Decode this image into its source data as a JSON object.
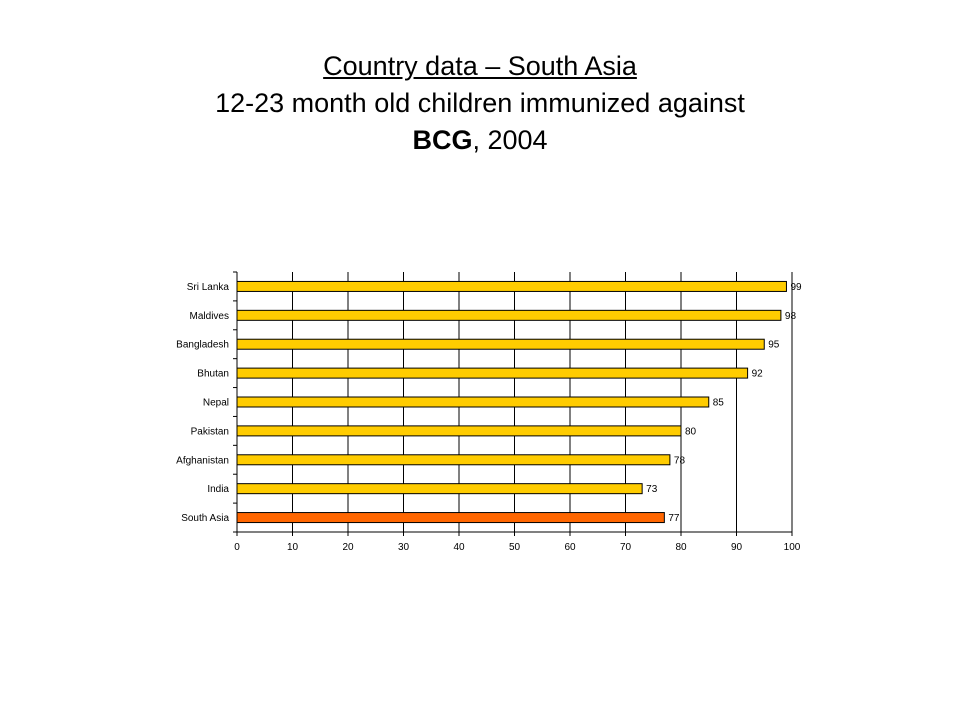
{
  "title": {
    "line1": "Country data – South Asia",
    "line2": "12-23 month old children immunized against",
    "line3_bold": "BCG",
    "line3_rest": ", 2004"
  },
  "chart_data": {
    "type": "bar",
    "orientation": "horizontal",
    "categories": [
      "Sri Lanka",
      "Maldives",
      "Bangladesh",
      "Bhutan",
      "Nepal",
      "Pakistan",
      "Afghanistan",
      "India",
      "South Asia"
    ],
    "values": [
      99,
      98,
      95,
      92,
      85,
      80,
      78,
      73,
      77
    ],
    "highlight_category": "South Asia",
    "bar_color": "#FFCC00",
    "highlight_color": "#FF6600",
    "xlim": [
      0,
      100
    ],
    "xticks": [
      0,
      10,
      20,
      30,
      40,
      50,
      60,
      70,
      80,
      90,
      100
    ],
    "grid": "vertical",
    "data_labels": true
  }
}
